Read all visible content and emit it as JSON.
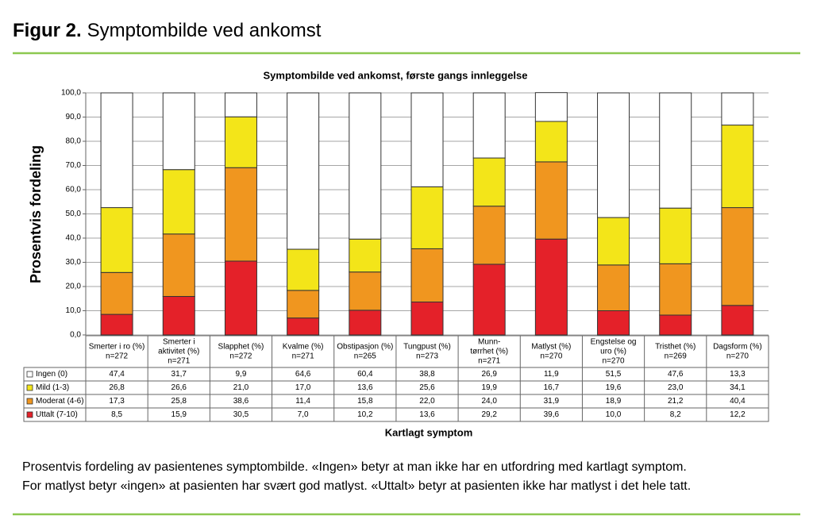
{
  "header": {
    "label": "Figur 2.",
    "title": "Symptombilde ved ankomst"
  },
  "caption": [
    "Prosentvis fordeling av pasientenes symptombilde. «Ingen» betyr at man ikke har en utfordring med kartlagt symptom.",
    "For matlyst betyr «ingen» at pasienten har svært god matlyst. «Uttalt» betyr at pasienten ikke har matlyst i det hele tatt."
  ],
  "chart_data": {
    "type": "stacked_bar",
    "title": "Symptombilde ved  ankomst, første gangs innleggelse",
    "y_label": "Prosentvis fordeling",
    "x_label": "Kartlagt symptom",
    "categories": [
      [
        "Smerter i ro (%)",
        "n=272"
      ],
      [
        "Smerter i",
        "aktivitet (%)",
        "n=271"
      ],
      [
        "Slapphet (%)",
        "n=272"
      ],
      [
        "Kvalme (%)",
        "n=271"
      ],
      [
        "Obstipasjon (%)",
        "n=265"
      ],
      [
        "Tungpust (%)",
        "n=273"
      ],
      [
        "Munn-",
        "tørrhet (%)",
        "n=271"
      ],
      [
        "Matlyst (%)",
        "n=270"
      ],
      [
        "Engstelse og",
        "uro (%)",
        "n=270"
      ],
      [
        "Tristhet (%)",
        "n=269"
      ],
      [
        "Dagsform (%)",
        "n=270"
      ]
    ],
    "series": [
      {
        "name": "Ingen (0)",
        "color": "#ffffff",
        "values": [
          47.4,
          31.7,
          9.9,
          64.6,
          60.4,
          38.8,
          26.9,
          11.9,
          51.5,
          47.6,
          13.3
        ],
        "value_labels": [
          "47,4",
          "31,7",
          "9,9",
          "64,6",
          "60,4",
          "38,8",
          "26,9",
          "11,9",
          "51,5",
          "47,6",
          "13,3"
        ]
      },
      {
        "name": "Mild (1-3)",
        "color": "#f3e519",
        "values": [
          26.8,
          26.6,
          21.0,
          17.0,
          13.6,
          25.6,
          19.9,
          16.7,
          19.6,
          23.0,
          34.1
        ],
        "value_labels": [
          "26,8",
          "26,6",
          "21,0",
          "17,0",
          "13,6",
          "25,6",
          "19,9",
          "16,7",
          "19,6",
          "23,0",
          "34,1"
        ]
      },
      {
        "name": "Moderat (4-6)",
        "color": "#f0961f",
        "values": [
          17.3,
          25.8,
          38.6,
          11.4,
          15.8,
          22.0,
          24.0,
          31.9,
          18.9,
          21.2,
          40.4
        ],
        "value_labels": [
          "17,3",
          "25,8",
          "38,6",
          "11,4",
          "15,8",
          "22,0",
          "24,0",
          "31,9",
          "18,9",
          "21,2",
          "40,4"
        ]
      },
      {
        "name": "Uttalt (7-10)",
        "color": "#e42129",
        "values": [
          8.5,
          15.9,
          30.5,
          7.0,
          10.2,
          13.6,
          29.2,
          39.6,
          10.0,
          8.2,
          12.2
        ],
        "value_labels": [
          "8,5",
          "15,9",
          "30,5",
          "7,0",
          "10,2",
          "13,6",
          "29,2",
          "39,6",
          "10,0",
          "8,2",
          "12,2"
        ]
      }
    ],
    "ylim": [
      0,
      100
    ],
    "yticks": [
      {
        "value": 0,
        "label": "0,0"
      },
      {
        "value": 10,
        "label": "10,0"
      },
      {
        "value": 20,
        "label": "20,0"
      },
      {
        "value": 30,
        "label": "30,0"
      },
      {
        "value": 40,
        "label": "40,0"
      },
      {
        "value": 50,
        "label": "50,0"
      },
      {
        "value": 60,
        "label": "60,0"
      },
      {
        "value": 70,
        "label": "70,0"
      },
      {
        "value": 80,
        "label": "80,0"
      },
      {
        "value": 90,
        "label": "90,0"
      },
      {
        "value": 100,
        "label": "100,0"
      }
    ],
    "grid": true
  }
}
